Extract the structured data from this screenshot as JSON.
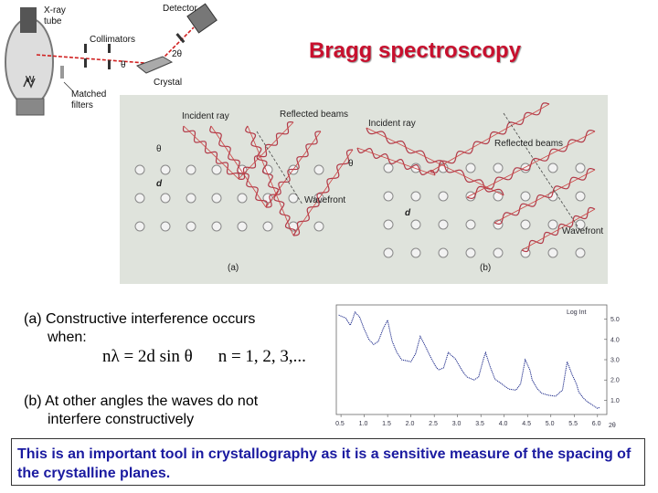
{
  "title": "Bragg spectroscopy",
  "apparatus": {
    "xray_tube": "X-ray tube",
    "detector": "Detector",
    "collimators": "Collimators",
    "matched_filters": "Matched filters",
    "crystal": "Crystal",
    "theta": "θ",
    "two_theta": "2θ",
    "filament": "W"
  },
  "figure": {
    "a": {
      "incident": "Incident ray",
      "reflected": "Reflected beams",
      "wavefront": "Wavefront",
      "theta": "θ",
      "d": "d",
      "panel": "(a)"
    },
    "b": {
      "incident": "Incident ray",
      "reflected": "Reflected beams",
      "wavefront": "Wavefront",
      "theta": "θ",
      "d": "d",
      "panel": "(b)"
    }
  },
  "text": {
    "a_line1": "(a) Constructive interference occurs",
    "a_line2": "when:",
    "formula_left": "nλ = 2d sin θ",
    "formula_right": "n = 1, 2, 3,...",
    "b_line1": "(b) At other angles the waves do not",
    "b_line2": "interfere constructively"
  },
  "note": "This is an important tool in crystallography as it is a sensitive measure of the spacing of the crystalline planes.",
  "chart_data": {
    "type": "line",
    "x_ticks": [
      "0.5",
      "1.0",
      "1.5",
      "2.0",
      "2.5",
      "3.0",
      "3.5",
      "4.0",
      "4.5",
      "5.0",
      "5.5",
      "6.0"
    ],
    "x_unit": "2θ",
    "y_ticks": [
      "1.0",
      "2.0",
      "3.0",
      "4.0",
      "5.0"
    ],
    "y_label": "Log Int",
    "xlim": [
      0.4,
      6.2
    ],
    "ylim": [
      0.3,
      5.7
    ],
    "series": [
      {
        "x": [
          0.45,
          0.6,
          0.7,
          0.75,
          0.8,
          0.9,
          1.0,
          1.1,
          1.2,
          1.3,
          1.4,
          1.5,
          1.55,
          1.6,
          1.7,
          1.8,
          2.0,
          2.1,
          2.2,
          2.3,
          2.45,
          2.55,
          2.6,
          2.7,
          2.8,
          2.95,
          3.1,
          3.2,
          3.35,
          3.45,
          3.55,
          3.6,
          3.7,
          3.8,
          3.95,
          4.1,
          4.25,
          4.35,
          4.45,
          4.55,
          4.6,
          4.7,
          4.8,
          4.95,
          5.1,
          5.25,
          5.35,
          5.45,
          5.55,
          5.6,
          5.7,
          5.8,
          5.9,
          6.0,
          6.05
        ],
        "y": [
          5.2,
          5.05,
          4.7,
          5.0,
          5.35,
          5.1,
          4.5,
          4.0,
          3.75,
          3.9,
          4.5,
          4.95,
          4.4,
          3.9,
          3.35,
          3.0,
          2.9,
          3.3,
          4.15,
          3.7,
          3.0,
          2.6,
          2.5,
          2.6,
          3.35,
          3.05,
          2.45,
          2.15,
          2.0,
          2.15,
          3.0,
          3.35,
          2.65,
          2.05,
          1.8,
          1.55,
          1.5,
          1.8,
          3.0,
          2.5,
          2.0,
          1.6,
          1.35,
          1.25,
          1.2,
          1.5,
          2.9,
          2.3,
          1.8,
          1.4,
          1.1,
          0.9,
          0.75,
          0.6,
          0.65
        ]
      }
    ]
  }
}
